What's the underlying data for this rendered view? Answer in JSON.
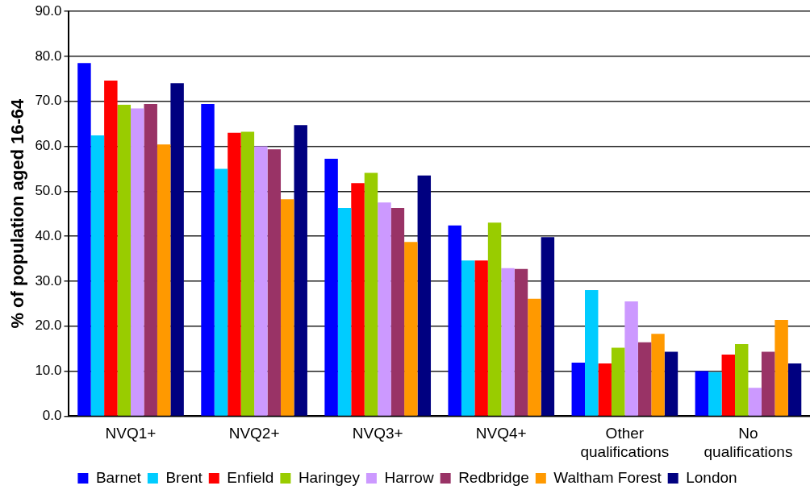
{
  "chart_data": {
    "type": "bar",
    "ylabel": "% of population aged 16-64",
    "categories": [
      "NVQ1+",
      "NVQ2+",
      "NVQ3+",
      "NVQ4+",
      "Other qualifications",
      "No qualifications"
    ],
    "series": [
      {
        "name": "Barnet",
        "color": "#0000ff",
        "values": [
          78.5,
          69.4,
          57.2,
          42.4,
          11.9,
          10.0
        ]
      },
      {
        "name": "Brent",
        "color": "#00ccff",
        "values": [
          62.4,
          55.0,
          46.3,
          34.6,
          28.0,
          9.8
        ]
      },
      {
        "name": "Enfield",
        "color": "#ff0000",
        "values": [
          74.6,
          63.0,
          51.8,
          34.6,
          11.7,
          13.7
        ]
      },
      {
        "name": "Haringey",
        "color": "#99cc00",
        "values": [
          69.2,
          63.2,
          54.1,
          43.0,
          15.2,
          16.0
        ]
      },
      {
        "name": "Harrow",
        "color": "#cc99ff",
        "values": [
          68.4,
          60.0,
          47.5,
          32.9,
          25.5,
          6.3
        ]
      },
      {
        "name": "Redbridge",
        "color": "#993366",
        "values": [
          69.4,
          59.3,
          46.3,
          32.7,
          16.4,
          14.3
        ]
      },
      {
        "name": "Waltham Forest",
        "color": "#ff9900",
        "values": [
          60.4,
          48.2,
          38.7,
          26.1,
          18.3,
          21.4
        ]
      },
      {
        "name": "London",
        "color": "#000080",
        "values": [
          74.0,
          64.7,
          53.5,
          39.8,
          14.3,
          11.7
        ]
      }
    ],
    "ylim": [
      0,
      90
    ],
    "yticks": [
      {
        "value": 0,
        "label": "0.0"
      },
      {
        "value": 10,
        "label": "10.0"
      },
      {
        "value": 20,
        "label": "20.0"
      },
      {
        "value": 30,
        "label": "30.0"
      },
      {
        "value": 40,
        "label": "40.0"
      },
      {
        "value": 50,
        "label": "50.0"
      },
      {
        "value": 60,
        "label": "60.0"
      },
      {
        "value": 70,
        "label": "70.0"
      },
      {
        "value": 80,
        "label": "80.0"
      },
      {
        "value": 90,
        "label": "90.0"
      }
    ],
    "grid": "y",
    "legend": "bottom"
  }
}
